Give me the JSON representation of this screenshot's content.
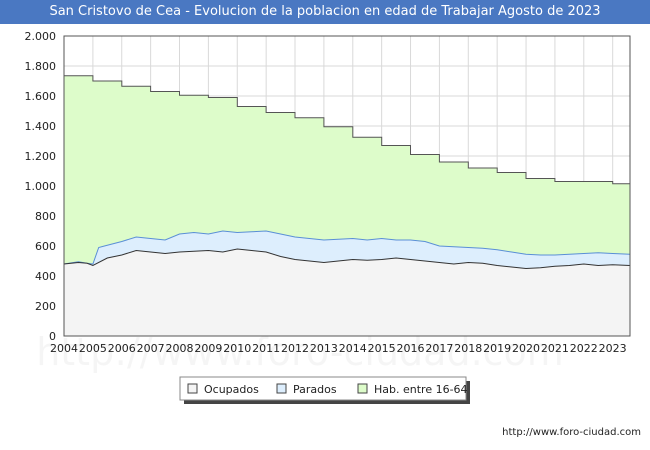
{
  "title": "San Cristovo de Cea - Evolucion de la poblacion en edad de Trabajar Agosto de 2023",
  "footer_url": "http://www.foro-ciudad.com",
  "chart_data": {
    "type": "area",
    "x_range": [
      2004,
      2023.6
    ],
    "ylim": [
      0,
      2000
    ],
    "y_ticks": [
      0,
      200,
      400,
      600,
      800,
      1000,
      1200,
      1400,
      1600,
      1800,
      2000
    ],
    "y_tick_labels": [
      "0",
      "200",
      "400",
      "600",
      "800",
      "1.000",
      "1.200",
      "1.400",
      "1.600",
      "1.800",
      "2.000"
    ],
    "x_ticks": [
      2004,
      2005,
      2006,
      2007,
      2008,
      2009,
      2010,
      2011,
      2012,
      2013,
      2014,
      2015,
      2016,
      2017,
      2018,
      2019,
      2020,
      2021,
      2022,
      2023
    ],
    "x_tick_labels": [
      "2004",
      "2005",
      "2006",
      "2007",
      "2008",
      "2009",
      "2010",
      "2011",
      "2012",
      "2013",
      "2014",
      "2015",
      "2016",
      "2017",
      "2018",
      "2019",
      "2020",
      "2021",
      "2022",
      "2023"
    ],
    "grid": true,
    "legend_position": "bottom",
    "series": [
      {
        "name": "Hab. entre 16-64",
        "color": "#ddfcca",
        "stroke": "#555555",
        "x": [
          2004,
          2005,
          2006,
          2007,
          2008,
          2009,
          2010,
          2011,
          2012,
          2013,
          2014,
          2015,
          2016,
          2017,
          2018,
          2019,
          2020,
          2021,
          2022,
          2023,
          2023.6
        ],
        "values": [
          1735,
          1700,
          1665,
          1630,
          1605,
          1590,
          1530,
          1490,
          1455,
          1395,
          1325,
          1270,
          1210,
          1160,
          1120,
          1090,
          1050,
          1030,
          1030,
          1015,
          1015
        ]
      },
      {
        "name": "Parados",
        "color": "#ddeefd",
        "stroke": "#5a8fd6",
        "x": [
          2004,
          2004.5,
          2004.8,
          2005.0,
          2005.2,
          2005.4,
          2006,
          2006.5,
          2007,
          2007.5,
          2008,
          2008.5,
          2009,
          2009.5,
          2010,
          2010.5,
          2011,
          2011.5,
          2012,
          2012.5,
          2013,
          2013.5,
          2014,
          2014.5,
          2015,
          2015.5,
          2016,
          2016.5,
          2017,
          2017.5,
          2018,
          2018.5,
          2019,
          2019.5,
          2020,
          2020.5,
          2021,
          2021.5,
          2022,
          2022.5,
          2023,
          2023.6
        ],
        "values": [
          480,
          495,
          485,
          480,
          590,
          600,
          630,
          660,
          650,
          640,
          680,
          690,
          680,
          700,
          690,
          695,
          700,
          680,
          660,
          650,
          640,
          645,
          650,
          640,
          650,
          640,
          640,
          630,
          600,
          595,
          590,
          585,
          575,
          560,
          545,
          540,
          540,
          545,
          550,
          555,
          550,
          545
        ]
      },
      {
        "name": "Ocupados",
        "color": "#f4f4f4",
        "stroke": "#333333",
        "x": [
          2004,
          2004.5,
          2004.8,
          2005.0,
          2005.5,
          2006,
          2006.5,
          2007,
          2007.5,
          2008,
          2008.5,
          2009,
          2009.5,
          2010,
          2010.5,
          2011,
          2011.5,
          2012,
          2012.5,
          2013,
          2013.5,
          2014,
          2014.5,
          2015,
          2015.5,
          2016,
          2016.5,
          2017,
          2017.5,
          2018,
          2018.5,
          2019,
          2019.5,
          2020,
          2020.5,
          2021,
          2021.5,
          2022,
          2022.5,
          2023,
          2023.6
        ],
        "values": [
          480,
          490,
          485,
          470,
          520,
          540,
          570,
          560,
          550,
          560,
          565,
          570,
          560,
          580,
          570,
          560,
          530,
          510,
          500,
          490,
          500,
          510,
          505,
          510,
          520,
          510,
          500,
          490,
          480,
          490,
          485,
          470,
          460,
          450,
          455,
          465,
          470,
          480,
          470,
          475,
          470
        ]
      }
    ]
  }
}
